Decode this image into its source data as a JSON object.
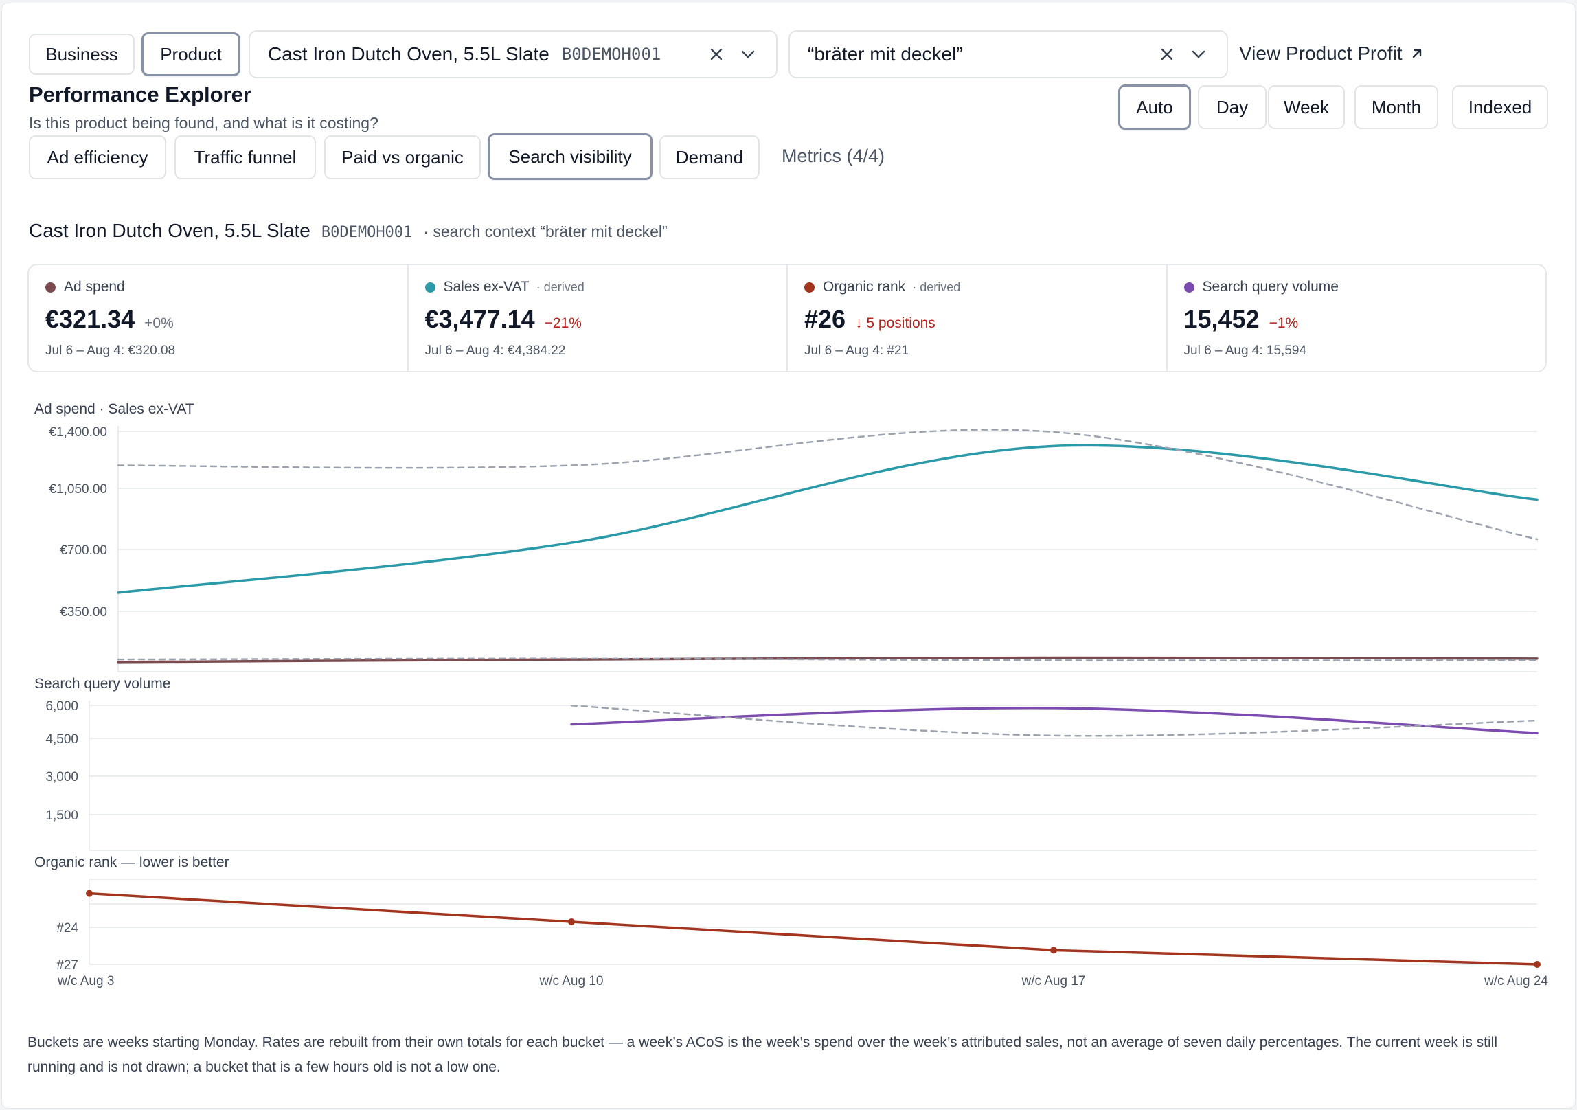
{
  "header": {
    "scope_buttons": [
      {
        "label": "Business",
        "active": false
      },
      {
        "label": "Product",
        "active": true
      }
    ],
    "product_select": {
      "name": "Cast Iron Dutch Oven, 5.5L Slate",
      "code": "B0DEMOH001"
    },
    "search_select": {
      "value": "“bräter mit deckel”"
    },
    "view_profit_link": "View Product Profit",
    "icons": {
      "clear": "close-icon",
      "expand": "chevron-down-icon",
      "external": "arrow-up-right-icon"
    }
  },
  "page": {
    "title": "Performance Explorer",
    "subtitle": "Is this product being found, and what is it costing?"
  },
  "granularity": [
    {
      "label": "Auto",
      "active": true
    },
    {
      "label": "Day",
      "active": false
    },
    {
      "label": "Week",
      "active": false
    },
    {
      "label": "Month",
      "active": false
    },
    {
      "label": "Indexed",
      "active": false
    }
  ],
  "view_tabs": [
    {
      "label": "Ad efficiency",
      "active": false
    },
    {
      "label": "Traffic funnel",
      "active": false
    },
    {
      "label": "Paid vs organic",
      "active": false
    },
    {
      "label": "Search visibility",
      "active": true
    },
    {
      "label": "Demand",
      "active": false
    }
  ],
  "metrics_link": "Metrics (4/4)",
  "context": {
    "product_name": "Cast Iron Dutch Oven, 5.5L Slate",
    "product_code": "B0DEMOH001",
    "search_context": "· search context “bräter mit deckel”"
  },
  "cards": [
    {
      "label": "Ad spend",
      "tag": "",
      "color": "#7a4a4f",
      "value": "€321.34",
      "change": "+0%",
      "change_type": "neutral",
      "compare": "Jul 6 – Aug 4: €320.08"
    },
    {
      "label": "Sales ex-VAT",
      "tag": "· derived",
      "color": "#2a9aa8",
      "value": "€3,477.14",
      "change": "−21%",
      "change_type": "neg",
      "compare": "Jul 6 – Aug 4: €4,384.22"
    },
    {
      "label": "Organic rank",
      "tag": "· derived",
      "color": "#a3341d",
      "value": "#26",
      "change": "↓ 5 positions",
      "change_type": "neg",
      "compare": "Jul 6 – Aug 4: #21"
    },
    {
      "label": "Search query volume",
      "tag": "",
      "color": "#7b4bb0",
      "value": "15,452",
      "change": "−1%",
      "change_type": "neg",
      "compare": "Jul 6 – Aug 4: 15,594"
    }
  ],
  "chart_data": [
    {
      "type": "line",
      "title": "Ad spend · Sales ex-VAT",
      "x": [
        "w/c Aug 3",
        "w/c Aug 10",
        "w/c Aug 17",
        "w/c Aug 24"
      ],
      "yticks": [
        "€1,400.00",
        "€1,050.00",
        "€700.00",
        "€350.00"
      ],
      "ylim": [
        0,
        1400
      ],
      "grid": true,
      "series": [
        {
          "name": "Sales ex-VAT",
          "color": "#2a9aa8",
          "style": "solid",
          "values": [
            450,
            735,
            1285,
            980
          ]
        },
        {
          "name": "Ad spend",
          "color": "#7a4a4f",
          "style": "solid",
          "values": [
            55,
            70,
            80,
            75
          ]
        },
        {
          "name": "Sales ex-VAT (comparison)",
          "color": "#9ca3af",
          "style": "dashed",
          "values": [
            1175,
            1175,
            1365,
            755
          ]
        },
        {
          "name": "Ad spend (comparison)",
          "color": "#9ca3af",
          "style": "dashed",
          "values": [
            70,
            75,
            65,
            65
          ]
        }
      ]
    },
    {
      "type": "line",
      "title": "Search query volume",
      "x": [
        "w/c Aug 3",
        "w/c Aug 10",
        "w/c Aug 17",
        "w/c Aug 24"
      ],
      "yticks": [
        "6,000",
        "4,500",
        "3,000",
        "1,500"
      ],
      "ylim": [
        0,
        6000
      ],
      "grid": true,
      "series": [
        {
          "name": "Search query volume",
          "color": "#7b4bb0",
          "style": "solid",
          "values": [
            null,
            5050,
            5700,
            4700
          ]
        },
        {
          "name": "Search query volume (comparison)",
          "color": "#9ca3af",
          "style": "dashed",
          "values": [
            null,
            5800,
            4600,
            5200
          ]
        }
      ]
    },
    {
      "type": "line",
      "title": "Organic rank — lower is better",
      "x": [
        "w/c Aug 3",
        "w/c Aug 10",
        "w/c Aug 17",
        "w/c Aug 24"
      ],
      "yticks": [
        "#24",
        "#27"
      ],
      "ylim": [
        21,
        27
      ],
      "inverted": true,
      "grid": true,
      "series": [
        {
          "name": "Organic rank",
          "color": "#a3341d",
          "style": "solid-markers",
          "values": [
            22,
            24,
            26,
            27
          ]
        }
      ]
    }
  ],
  "footnote": "Buckets are weeks starting Monday. Rates are rebuilt from their own totals for each bucket — a week’s ACoS is the week’s spend over the week’s attributed sales, not an average of seven daily percentages. The current week is still running and is not drawn; a bucket that is a few hours old is not a low one."
}
